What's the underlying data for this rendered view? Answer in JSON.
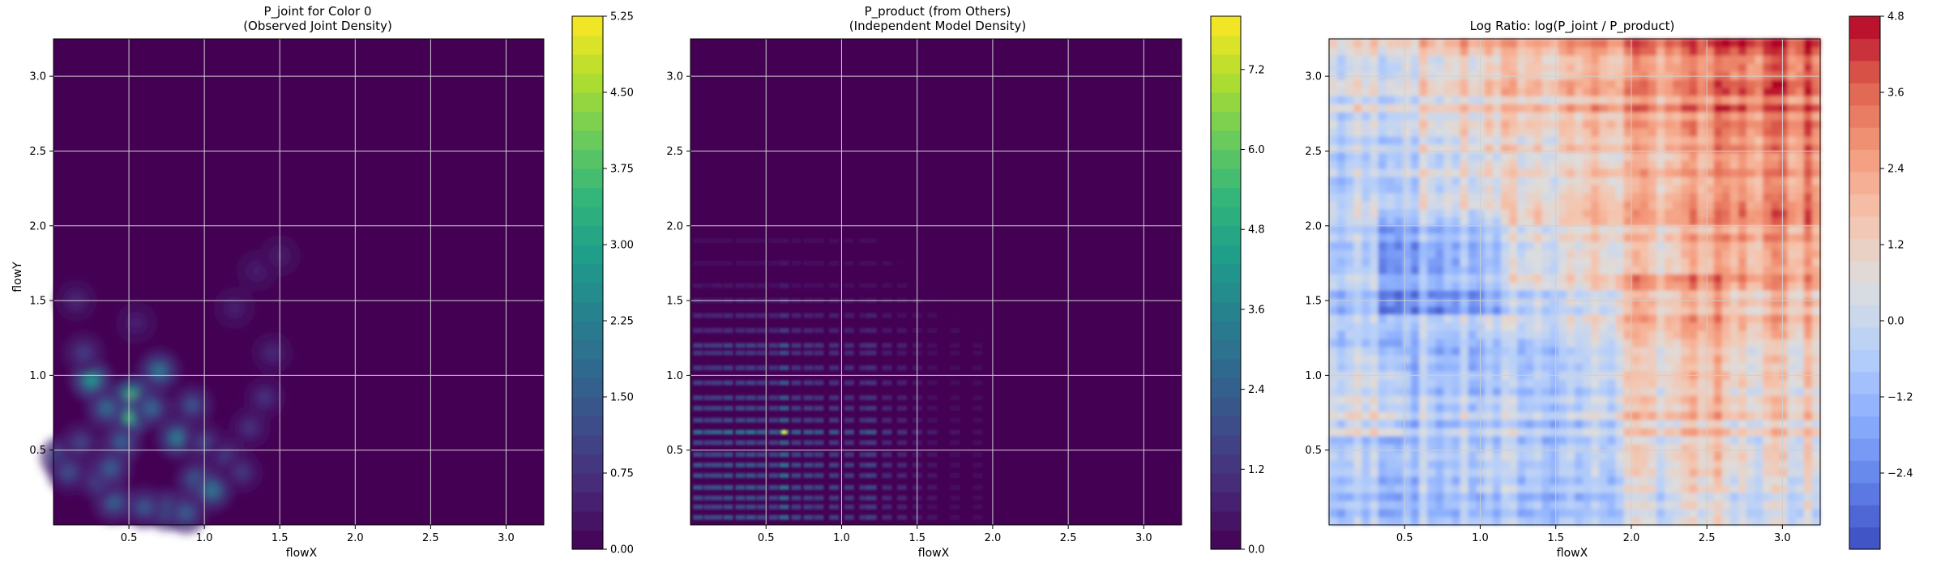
{
  "chart_data": [
    {
      "type": "heatmap",
      "title": "P_joint for Color 0\n(Observed Joint Density)",
      "xlabel": "flowX",
      "ylabel": "flowY",
      "xlim": [
        0.0,
        3.25
      ],
      "ylim": [
        0.0,
        3.25
      ],
      "xticks": [
        "0.5",
        "1.0",
        "1.5",
        "2.0",
        "2.5",
        "3.0"
      ],
      "yticks": [
        "0.5",
        "1.0",
        "1.5",
        "2.0",
        "2.5",
        "3.0"
      ],
      "colormap": "viridis",
      "grid": true,
      "colorbar": {
        "min": 0.0,
        "max": 5.25,
        "ticks": [
          "0.00",
          "0.75",
          "1.50",
          "2.25",
          "3.00",
          "3.75",
          "4.50",
          "5.25"
        ]
      },
      "hotspots": [
        {
          "x": 0.52,
          "y": 0.85,
          "v": 4.0
        },
        {
          "x": 0.5,
          "y": 0.72,
          "v": 3.6
        },
        {
          "x": 0.25,
          "y": 0.97,
          "v": 2.9
        },
        {
          "x": 0.7,
          "y": 1.03,
          "v": 2.2
        },
        {
          "x": 0.82,
          "y": 0.58,
          "v": 2.3
        },
        {
          "x": 0.35,
          "y": 0.78,
          "v": 1.9
        },
        {
          "x": 0.45,
          "y": 0.55,
          "v": 1.7
        },
        {
          "x": 0.65,
          "y": 0.78,
          "v": 1.8
        },
        {
          "x": 0.92,
          "y": 0.8,
          "v": 1.4
        },
        {
          "x": 0.95,
          "y": 0.3,
          "v": 1.8
        },
        {
          "x": 1.05,
          "y": 0.23,
          "v": 2.2
        },
        {
          "x": 0.75,
          "y": 0.1,
          "v": 2.0
        },
        {
          "x": 0.88,
          "y": 0.08,
          "v": 1.6
        },
        {
          "x": 0.6,
          "y": 0.12,
          "v": 1.5
        },
        {
          "x": 0.4,
          "y": 0.15,
          "v": 1.7
        },
        {
          "x": 0.3,
          "y": 0.3,
          "v": 1.4
        },
        {
          "x": 0.38,
          "y": 0.38,
          "v": 1.6
        },
        {
          "x": 0.05,
          "y": 0.45,
          "v": 1.6
        },
        {
          "x": 0.1,
          "y": 0.35,
          "v": 1.3
        },
        {
          "x": 0.18,
          "y": 0.55,
          "v": 1.1
        },
        {
          "x": 0.2,
          "y": 1.15,
          "v": 1.0
        },
        {
          "x": 1.0,
          "y": 0.55,
          "v": 1.1
        },
        {
          "x": 1.15,
          "y": 0.45,
          "v": 1.0
        },
        {
          "x": 1.25,
          "y": 0.35,
          "v": 0.9
        },
        {
          "x": 1.3,
          "y": 0.65,
          "v": 0.8
        },
        {
          "x": 1.4,
          "y": 0.85,
          "v": 0.8
        },
        {
          "x": 1.45,
          "y": 1.15,
          "v": 0.6
        },
        {
          "x": 1.2,
          "y": 1.45,
          "v": 0.5
        },
        {
          "x": 1.35,
          "y": 1.7,
          "v": 0.45
        },
        {
          "x": 1.5,
          "y": 1.8,
          "v": 0.4
        },
        {
          "x": 0.15,
          "y": 1.5,
          "v": 0.6
        },
        {
          "x": 0.55,
          "y": 1.35,
          "v": 0.5
        }
      ]
    },
    {
      "type": "heatmap",
      "title": "P_product (from Others)\n(Independent Model Density)",
      "xlabel": "flowX",
      "ylabel": "",
      "xlim": [
        0.0,
        3.25
      ],
      "ylim": [
        0.0,
        3.25
      ],
      "xticks": [
        "0.5",
        "1.0",
        "1.5",
        "2.0",
        "2.5",
        "3.0"
      ],
      "yticks": [
        "0.5",
        "1.0",
        "1.5",
        "2.0",
        "2.5",
        "3.0"
      ],
      "colormap": "viridis",
      "grid": true,
      "colorbar": {
        "min": 0.0,
        "max": 8.0,
        "ticks": [
          "0.0",
          "1.2",
          "2.4",
          "3.6",
          "4.8",
          "6.0",
          "7.2"
        ]
      },
      "marginal_peaks": [
        {
          "pos": 0.05,
          "w": 0.7
        },
        {
          "pos": 0.12,
          "w": 0.6
        },
        {
          "pos": 0.18,
          "w": 0.65
        },
        {
          "pos": 0.25,
          "w": 0.75
        },
        {
          "pos": 0.33,
          "w": 0.7
        },
        {
          "pos": 0.4,
          "w": 0.75
        },
        {
          "pos": 0.47,
          "w": 0.65
        },
        {
          "pos": 0.55,
          "w": 0.6
        },
        {
          "pos": 0.62,
          "w": 1.0
        },
        {
          "pos": 0.7,
          "w": 0.6
        },
        {
          "pos": 0.78,
          "w": 0.6
        },
        {
          "pos": 0.85,
          "w": 0.55
        },
        {
          "pos": 0.95,
          "w": 0.55
        },
        {
          "pos": 1.05,
          "w": 0.5
        },
        {
          "pos": 1.15,
          "w": 0.45
        },
        {
          "pos": 1.2,
          "w": 0.55
        },
        {
          "pos": 1.3,
          "w": 0.35
        },
        {
          "pos": 1.4,
          "w": 0.3
        },
        {
          "pos": 1.5,
          "w": 0.2
        },
        {
          "pos": 1.6,
          "w": 0.15
        },
        {
          "pos": 1.75,
          "w": 0.1
        },
        {
          "pos": 1.9,
          "w": 0.08
        }
      ]
    },
    {
      "type": "heatmap",
      "title": "Log Ratio: log(P_joint / P_product)",
      "xlabel": "flowX",
      "ylabel": "",
      "xlim": [
        0.0,
        3.25
      ],
      "ylim": [
        0.0,
        3.25
      ],
      "xticks": [
        "0.5",
        "1.0",
        "1.5",
        "2.0",
        "2.5",
        "3.0"
      ],
      "yticks": [
        "0.5",
        "1.0",
        "1.5",
        "2.0",
        "2.5",
        "3.0"
      ],
      "colormap": "coolwarm",
      "grid": true,
      "colorbar": {
        "min": -3.6,
        "max": 4.8,
        "ticks": [
          "−2.4",
          "−1.2",
          "0.0",
          "1.2",
          "2.4",
          "3.6",
          "4.8"
        ]
      }
    }
  ],
  "colors": {
    "viridis_low": "#440154",
    "viridis_high": "#fde725",
    "coolwarm_low": "#3b4cc0",
    "coolwarm_mid": "#dddddd",
    "coolwarm_high": "#b40426",
    "grid": "#cfcfcf"
  }
}
